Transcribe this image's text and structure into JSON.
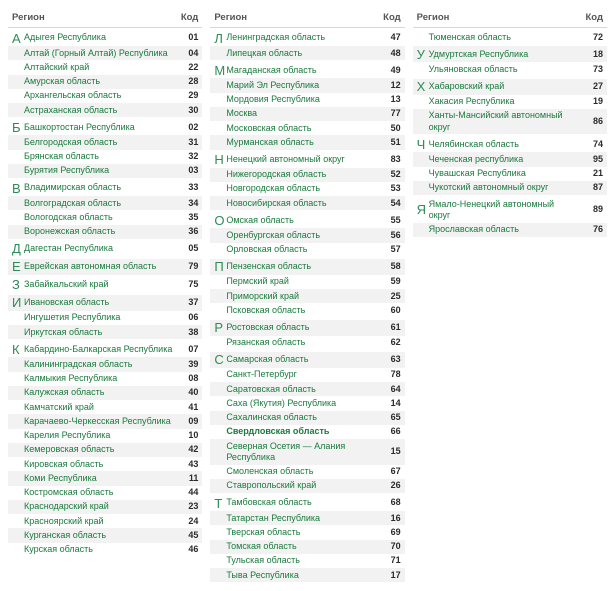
{
  "headers": {
    "region": "Регион",
    "code": "Код"
  },
  "colors": {
    "link": "#1a7a3d",
    "letter": "#2e8b57",
    "code": "#2b2b2b",
    "alt_bg": "#f2f2f2",
    "border": "#d8d8d8",
    "background": "#ffffff"
  },
  "columns": [
    [
      {
        "letter": "А",
        "rows": [
          {
            "name": "Адыгея Республика",
            "code": "01"
          },
          {
            "name": "Алтай (Горный Алтай) Республика",
            "code": "04"
          },
          {
            "name": "Алтайский край",
            "code": "22"
          },
          {
            "name": "Амурская область",
            "code": "28"
          },
          {
            "name": "Архангельская область",
            "code": "29"
          },
          {
            "name": "Астраханская область",
            "code": "30"
          }
        ]
      },
      {
        "letter": "Б",
        "rows": [
          {
            "name": "Башкортостан Республика",
            "code": "02"
          },
          {
            "name": "Белгородская область",
            "code": "31"
          },
          {
            "name": "Брянская область",
            "code": "32"
          },
          {
            "name": "Бурятия Республика",
            "code": "03"
          }
        ]
      },
      {
        "letter": "В",
        "rows": [
          {
            "name": "Владимирская область",
            "code": "33"
          },
          {
            "name": "Волгоградская область",
            "code": "34"
          },
          {
            "name": "Вологодская область",
            "code": "35"
          },
          {
            "name": "Воронежская область",
            "code": "36"
          }
        ]
      },
      {
        "letter": "Д",
        "rows": [
          {
            "name": "Дагестан Республика",
            "code": "05"
          }
        ]
      },
      {
        "letter": "Е",
        "rows": [
          {
            "name": "Еврейская автономная область",
            "code": "79"
          }
        ]
      },
      {
        "letter": "З",
        "rows": [
          {
            "name": "Забайкальский край",
            "code": "75"
          }
        ]
      },
      {
        "letter": "И",
        "rows": [
          {
            "name": "Ивановская область",
            "code": "37"
          },
          {
            "name": "Ингушетия Республика",
            "code": "06"
          },
          {
            "name": "Иркутская область",
            "code": "38"
          }
        ]
      },
      {
        "letter": "К",
        "rows": [
          {
            "name": "Кабардино-Балкарская Республика",
            "code": "07"
          },
          {
            "name": "Калининградская область",
            "code": "39"
          },
          {
            "name": "Калмыкия Республика",
            "code": "08"
          },
          {
            "name": "Калужская область",
            "code": "40"
          },
          {
            "name": "Камчатский край",
            "code": "41"
          },
          {
            "name": "Карачаево-Черкесская Республика",
            "code": "09"
          },
          {
            "name": "Карелия Республика",
            "code": "10"
          },
          {
            "name": "Кемеровская область",
            "code": "42"
          },
          {
            "name": "Кировская область",
            "code": "43"
          },
          {
            "name": "Коми Республика",
            "code": "11"
          },
          {
            "name": "Костромская область",
            "code": "44"
          },
          {
            "name": "Краснодарский край",
            "code": "23"
          },
          {
            "name": "Красноярский край",
            "code": "24"
          },
          {
            "name": "Курганская область",
            "code": "45"
          },
          {
            "name": "Курская область",
            "code": "46"
          }
        ]
      }
    ],
    [
      {
        "letter": "Л",
        "rows": [
          {
            "name": "Ленинградская область",
            "code": "47"
          },
          {
            "name": "Липецкая область",
            "code": "48"
          }
        ]
      },
      {
        "letter": "М",
        "rows": [
          {
            "name": "Магаданская область",
            "code": "49"
          },
          {
            "name": "Марий Эл Республика",
            "code": "12"
          },
          {
            "name": "Мордовия Республика",
            "code": "13"
          },
          {
            "name": "Москва",
            "code": "77"
          },
          {
            "name": "Московская область",
            "code": "50"
          },
          {
            "name": "Мурманская область",
            "code": "51"
          }
        ]
      },
      {
        "letter": "Н",
        "rows": [
          {
            "name": "Ненецкий автономный округ",
            "code": "83"
          },
          {
            "name": "Нижегородская область",
            "code": "52"
          },
          {
            "name": "Новгородская область",
            "code": "53"
          },
          {
            "name": "Новосибирская область",
            "code": "54"
          }
        ]
      },
      {
        "letter": "О",
        "rows": [
          {
            "name": "Омская область",
            "code": "55"
          },
          {
            "name": "Оренбургская область",
            "code": "56"
          },
          {
            "name": "Орловская область",
            "code": "57"
          }
        ]
      },
      {
        "letter": "П",
        "rows": [
          {
            "name": "Пензенская область",
            "code": "58"
          },
          {
            "name": "Пермский край",
            "code": "59"
          },
          {
            "name": "Приморский край",
            "code": "25"
          },
          {
            "name": "Псковская область",
            "code": "60"
          }
        ]
      },
      {
        "letter": "Р",
        "rows": [
          {
            "name": "Ростовская область",
            "code": "61"
          },
          {
            "name": "Рязанская область",
            "code": "62"
          }
        ]
      },
      {
        "letter": "С",
        "rows": [
          {
            "name": "Самарская область",
            "code": "63"
          },
          {
            "name": "Санкт-Петербург",
            "code": "78"
          },
          {
            "name": "Саратовская область",
            "code": "64"
          },
          {
            "name": "Саха (Якутия) Республика",
            "code": "14"
          },
          {
            "name": "Сахалинская область",
            "code": "65"
          },
          {
            "name": "Свердловская область",
            "code": "66",
            "bold": true
          },
          {
            "name": "Северная Осетия — Алания Республика",
            "code": "15"
          },
          {
            "name": "Смоленская область",
            "code": "67"
          },
          {
            "name": "Ставропольский край",
            "code": "26"
          }
        ]
      },
      {
        "letter": "Т",
        "rows": [
          {
            "name": "Тамбовская область",
            "code": "68"
          },
          {
            "name": "Татарстан Республика",
            "code": "16"
          },
          {
            "name": "Тверская область",
            "code": "69"
          },
          {
            "name": "Томская область",
            "code": "70"
          },
          {
            "name": "Тульская область",
            "code": "71"
          },
          {
            "name": "Тыва Республика",
            "code": "17"
          }
        ]
      }
    ],
    [
      {
        "letter": "",
        "rows": [
          {
            "name": "Тюменская область",
            "code": "72"
          }
        ]
      },
      {
        "letter": "У",
        "rows": [
          {
            "name": "Удмуртская Республика",
            "code": "18"
          },
          {
            "name": "Ульяновская область",
            "code": "73"
          }
        ]
      },
      {
        "letter": "Х",
        "rows": [
          {
            "name": "Хабаровский край",
            "code": "27"
          },
          {
            "name": "Хакасия Республика",
            "code": "19"
          },
          {
            "name": "Ханты-Мансийский автономный округ",
            "code": "86"
          }
        ]
      },
      {
        "letter": "Ч",
        "rows": [
          {
            "name": "Челябинская область",
            "code": "74"
          },
          {
            "name": "Чеченская республика",
            "code": "95"
          },
          {
            "name": "Чувашская Республика",
            "code": "21"
          },
          {
            "name": "Чукотский автономный округ",
            "code": "87"
          }
        ]
      },
      {
        "letter": "Я",
        "rows": [
          {
            "name": "Ямало-Ненецкий автономный округ",
            "code": "89"
          },
          {
            "name": "Ярославская область",
            "code": "76"
          }
        ]
      }
    ]
  ]
}
